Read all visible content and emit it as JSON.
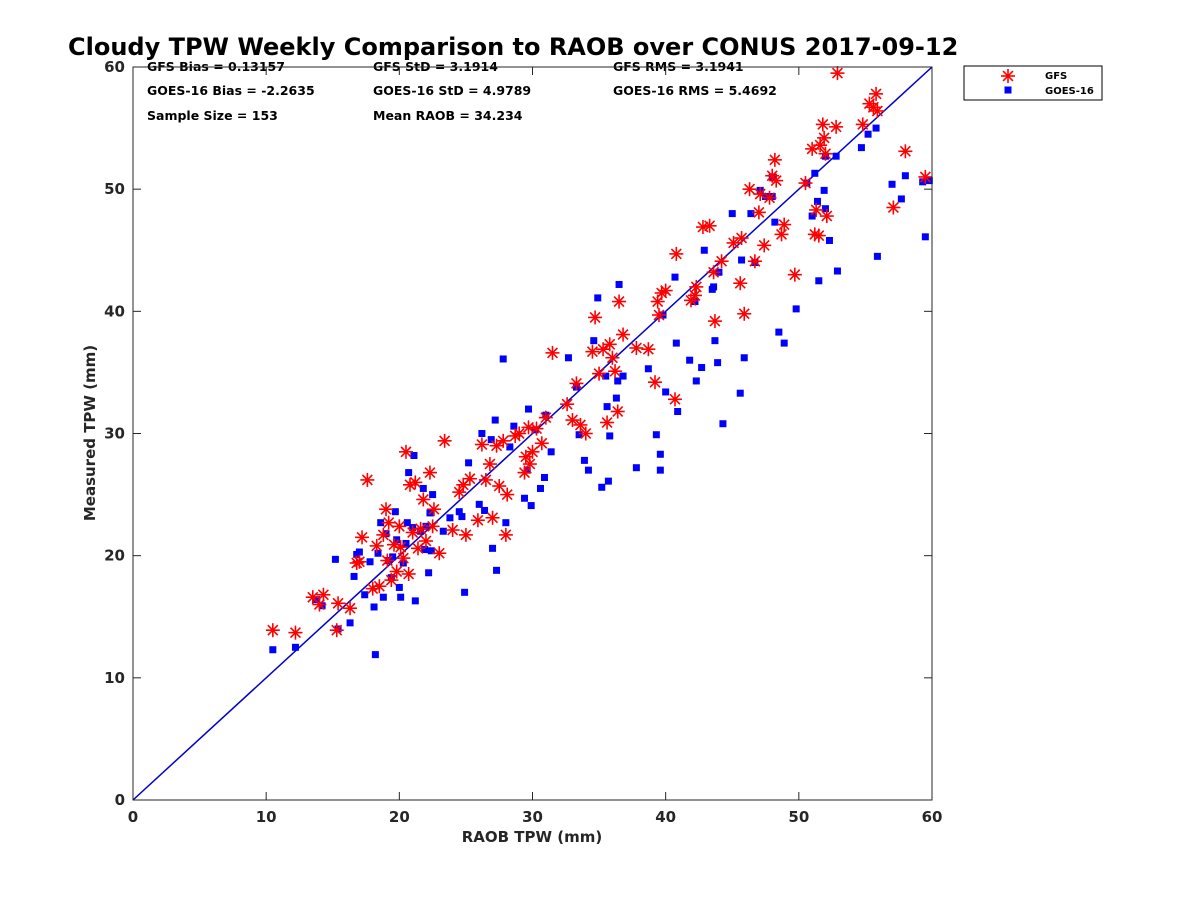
{
  "chart_data": {
    "type": "scatter",
    "title": "Cloudy TPW Weekly Comparison to RAOB over CONUS 2017-09-12",
    "xlabel": "RAOB TPW (mm)",
    "ylabel": "Measured TPW (mm)",
    "xlim": [
      0,
      60
    ],
    "ylim": [
      0,
      60
    ],
    "xticks": [
      "0",
      "10",
      "20",
      "30",
      "40",
      "50",
      "60"
    ],
    "yticks": [
      "0",
      "10",
      "20",
      "30",
      "40",
      "50",
      "60"
    ],
    "grid": false,
    "legend_position": "outside-top-right",
    "stats": [
      {
        "label": "GFS Bias = 0.13157",
        "row": 0,
        "col": 0
      },
      {
        "label": "GFS StD = 3.1914",
        "row": 0,
        "col": 1
      },
      {
        "label": "GFS RMS = 3.1941",
        "row": 0,
        "col": 2
      },
      {
        "label": "GOES-16 Bias = -2.2635",
        "row": 1,
        "col": 0
      },
      {
        "label": "GOES-16 StD = 4.9789",
        "row": 1,
        "col": 1
      },
      {
        "label": "GOES-16 RMS = 5.4692",
        "row": 1,
        "col": 2
      },
      {
        "label": "Sample Size = 153",
        "row": 2,
        "col": 0
      },
      {
        "label": "Mean RAOB = 34.234",
        "row": 2,
        "col": 1
      }
    ],
    "reference_line": {
      "x": [
        0,
        60
      ],
      "y": [
        0,
        60
      ],
      "color": "#0000cc"
    },
    "series": [
      {
        "name": "GFS",
        "marker": "asterisk",
        "color": "#ff0000",
        "points": [
          [
            10.5,
            13.9
          ],
          [
            12.2,
            13.7
          ],
          [
            13.5,
            16.6
          ],
          [
            14.0,
            16.0
          ],
          [
            14.3,
            16.8
          ],
          [
            15.3,
            13.9
          ],
          [
            15.4,
            16.1
          ],
          [
            16.3,
            15.7
          ],
          [
            16.8,
            19.4
          ],
          [
            17.0,
            19.5
          ],
          [
            17.2,
            21.5
          ],
          [
            17.6,
            26.2
          ],
          [
            18.0,
            17.3
          ],
          [
            18.3,
            20.8
          ],
          [
            18.5,
            17.5
          ],
          [
            18.8,
            21.7
          ],
          [
            19.0,
            23.8
          ],
          [
            19.1,
            19.6
          ],
          [
            19.2,
            22.7
          ],
          [
            19.4,
            18.0
          ],
          [
            19.6,
            20.9
          ],
          [
            19.8,
            18.7
          ],
          [
            20.0,
            22.4
          ],
          [
            20.1,
            20.7
          ],
          [
            20.3,
            19.8
          ],
          [
            20.5,
            28.5
          ],
          [
            20.7,
            18.5
          ],
          [
            20.8,
            25.8
          ],
          [
            21.0,
            21.9
          ],
          [
            21.2,
            26.0
          ],
          [
            21.4,
            20.6
          ],
          [
            21.6,
            22.2
          ],
          [
            21.8,
            24.6
          ],
          [
            22.0,
            21.2
          ],
          [
            22.3,
            26.8
          ],
          [
            22.5,
            22.4
          ],
          [
            22.6,
            23.8
          ],
          [
            23.0,
            20.2
          ],
          [
            23.4,
            29.4
          ],
          [
            24.0,
            22.1
          ],
          [
            24.5,
            25.2
          ],
          [
            24.8,
            25.8
          ],
          [
            25.0,
            21.7
          ],
          [
            25.3,
            26.3
          ],
          [
            25.9,
            22.9
          ],
          [
            26.2,
            29.1
          ],
          [
            26.5,
            26.2
          ],
          [
            26.8,
            27.5
          ],
          [
            27.0,
            23.1
          ],
          [
            27.3,
            29.0
          ],
          [
            27.5,
            25.7
          ],
          [
            27.8,
            29.4
          ],
          [
            28.0,
            21.7
          ],
          [
            28.1,
            25.0
          ],
          [
            28.7,
            29.8
          ],
          [
            29.0,
            30.0
          ],
          [
            29.4,
            26.8
          ],
          [
            29.5,
            28.1
          ],
          [
            29.7,
            30.5
          ],
          [
            29.8,
            27.5
          ],
          [
            30.0,
            28.5
          ],
          [
            30.3,
            30.4
          ],
          [
            30.7,
            29.2
          ],
          [
            31.0,
            31.3
          ],
          [
            31.5,
            36.6
          ],
          [
            32.6,
            32.4
          ],
          [
            33.0,
            31.1
          ],
          [
            33.3,
            34.1
          ],
          [
            33.6,
            30.7
          ],
          [
            34.0,
            30.0
          ],
          [
            34.5,
            36.7
          ],
          [
            34.7,
            39.5
          ],
          [
            35.0,
            34.9
          ],
          [
            35.3,
            36.9
          ],
          [
            35.6,
            30.9
          ],
          [
            35.8,
            37.3
          ],
          [
            36.0,
            36.2
          ],
          [
            36.2,
            35.1
          ],
          [
            36.4,
            31.8
          ],
          [
            36.5,
            40.8
          ],
          [
            36.8,
            38.1
          ],
          [
            37.8,
            37.0
          ],
          [
            38.7,
            36.9
          ],
          [
            39.2,
            34.2
          ],
          [
            39.4,
            40.8
          ],
          [
            39.5,
            39.7
          ],
          [
            39.7,
            41.5
          ],
          [
            40.0,
            41.7
          ],
          [
            40.7,
            32.8
          ],
          [
            40.8,
            44.7
          ],
          [
            41.9,
            40.9
          ],
          [
            42.2,
            41.3
          ],
          [
            42.3,
            42.0
          ],
          [
            42.8,
            46.9
          ],
          [
            43.3,
            47.0
          ],
          [
            43.6,
            43.2
          ],
          [
            43.7,
            39.2
          ],
          [
            44.2,
            44.1
          ],
          [
            45.1,
            45.6
          ],
          [
            45.6,
            42.3
          ],
          [
            45.7,
            46.0
          ],
          [
            45.9,
            39.8
          ],
          [
            46.3,
            50.0
          ],
          [
            46.7,
            44.1
          ],
          [
            47.0,
            48.1
          ],
          [
            47.1,
            49.6
          ],
          [
            47.4,
            45.4
          ],
          [
            47.8,
            49.3
          ],
          [
            48.0,
            51.1
          ],
          [
            48.2,
            52.4
          ],
          [
            48.3,
            50.7
          ],
          [
            48.7,
            46.3
          ],
          [
            48.9,
            47.1
          ],
          [
            49.7,
            43.0
          ],
          [
            50.5,
            50.5
          ],
          [
            51.0,
            53.3
          ],
          [
            51.2,
            46.3
          ],
          [
            51.3,
            48.3
          ],
          [
            51.5,
            46.2
          ],
          [
            51.6,
            53.6
          ],
          [
            51.8,
            55.3
          ],
          [
            51.9,
            54.2
          ],
          [
            52.0,
            52.9
          ],
          [
            52.1,
            47.8
          ],
          [
            52.9,
            59.5
          ],
          [
            52.8,
            55.1
          ],
          [
            54.8,
            55.3
          ],
          [
            55.3,
            57.0
          ],
          [
            55.6,
            56.7
          ],
          [
            55.8,
            57.8
          ],
          [
            55.9,
            56.4
          ],
          [
            57.1,
            48.5
          ],
          [
            58.0,
            53.1
          ],
          [
            59.5,
            51.0
          ]
        ]
      },
      {
        "name": "GOES-16",
        "marker": "square",
        "color": "#0000ff",
        "points": [
          [
            10.5,
            12.3
          ],
          [
            12.2,
            12.5
          ],
          [
            13.8,
            16.4
          ],
          [
            14.2,
            15.9
          ],
          [
            15.2,
            19.7
          ],
          [
            15.4,
            14.0
          ],
          [
            16.3,
            14.5
          ],
          [
            16.6,
            18.3
          ],
          [
            16.8,
            20.1
          ],
          [
            17.0,
            20.3
          ],
          [
            17.4,
            16.8
          ],
          [
            17.8,
            19.5
          ],
          [
            18.1,
            15.8
          ],
          [
            18.2,
            11.9
          ],
          [
            18.4,
            20.2
          ],
          [
            18.6,
            22.7
          ],
          [
            18.8,
            16.6
          ],
          [
            19.0,
            21.8
          ],
          [
            19.2,
            19.6
          ],
          [
            19.4,
            18.2
          ],
          [
            19.5,
            19.9
          ],
          [
            19.7,
            23.6
          ],
          [
            19.8,
            21.3
          ],
          [
            20.0,
            17.4
          ],
          [
            20.1,
            16.6
          ],
          [
            20.3,
            19.4
          ],
          [
            20.5,
            21.0
          ],
          [
            20.6,
            22.7
          ],
          [
            20.7,
            26.8
          ],
          [
            21.0,
            22.3
          ],
          [
            21.1,
            28.2
          ],
          [
            21.2,
            16.3
          ],
          [
            21.6,
            22.0
          ],
          [
            21.8,
            25.5
          ],
          [
            21.9,
            20.5
          ],
          [
            22.0,
            22.4
          ],
          [
            22.2,
            18.6
          ],
          [
            22.3,
            23.5
          ],
          [
            22.4,
            20.4
          ],
          [
            22.5,
            25.0
          ],
          [
            23.3,
            22.0
          ],
          [
            23.8,
            23.1
          ],
          [
            24.5,
            23.6
          ],
          [
            24.7,
            23.2
          ],
          [
            24.9,
            17.0
          ],
          [
            25.2,
            27.6
          ],
          [
            26.0,
            24.2
          ],
          [
            26.2,
            30.0
          ],
          [
            26.4,
            23.7
          ],
          [
            26.9,
            29.5
          ],
          [
            27.0,
            20.6
          ],
          [
            27.2,
            31.1
          ],
          [
            27.3,
            18.8
          ],
          [
            27.8,
            36.1
          ],
          [
            28.0,
            22.7
          ],
          [
            28.3,
            28.9
          ],
          [
            28.6,
            30.6
          ],
          [
            29.4,
            24.7
          ],
          [
            29.6,
            27.0
          ],
          [
            29.7,
            32.0
          ],
          [
            29.9,
            24.1
          ],
          [
            30.2,
            30.3
          ],
          [
            30.6,
            25.5
          ],
          [
            30.9,
            26.4
          ],
          [
            31.0,
            31.5
          ],
          [
            31.4,
            28.5
          ],
          [
            32.7,
            36.2
          ],
          [
            33.3,
            33.8
          ],
          [
            33.5,
            29.9
          ],
          [
            33.9,
            27.8
          ],
          [
            34.2,
            27.0
          ],
          [
            34.6,
            37.6
          ],
          [
            34.9,
            41.1
          ],
          [
            35.2,
            25.6
          ],
          [
            35.5,
            34.7
          ],
          [
            35.6,
            32.2
          ],
          [
            35.7,
            26.1
          ],
          [
            35.8,
            29.8
          ],
          [
            36.3,
            32.9
          ],
          [
            36.4,
            34.3
          ],
          [
            36.5,
            42.2
          ],
          [
            36.8,
            34.7
          ],
          [
            37.8,
            27.2
          ],
          [
            38.7,
            35.3
          ],
          [
            39.3,
            29.9
          ],
          [
            39.6,
            28.3
          ],
          [
            39.6,
            27.0
          ],
          [
            39.8,
            39.7
          ],
          [
            40.0,
            33.4
          ],
          [
            40.7,
            42.8
          ],
          [
            40.8,
            37.4
          ],
          [
            40.9,
            31.8
          ],
          [
            41.8,
            36.0
          ],
          [
            42.2,
            40.8
          ],
          [
            42.3,
            34.3
          ],
          [
            42.7,
            35.4
          ],
          [
            42.9,
            45.0
          ],
          [
            43.5,
            41.8
          ],
          [
            43.6,
            42.0
          ],
          [
            43.7,
            37.6
          ],
          [
            43.9,
            35.8
          ],
          [
            44.0,
            43.2
          ],
          [
            44.3,
            30.8
          ],
          [
            45.0,
            48.0
          ],
          [
            45.6,
            33.3
          ],
          [
            45.7,
            44.2
          ],
          [
            45.9,
            36.2
          ],
          [
            46.4,
            48.0
          ],
          [
            46.7,
            44.0
          ],
          [
            47.1,
            49.9
          ],
          [
            47.5,
            49.4
          ],
          [
            48.0,
            49.4
          ],
          [
            48.0,
            51.0
          ],
          [
            48.2,
            47.3
          ],
          [
            48.5,
            38.3
          ],
          [
            48.9,
            37.4
          ],
          [
            49.8,
            40.2
          ],
          [
            50.6,
            50.5
          ],
          [
            51.0,
            47.8
          ],
          [
            51.2,
            51.3
          ],
          [
            51.4,
            49.0
          ],
          [
            51.5,
            42.5
          ],
          [
            51.9,
            49.9
          ],
          [
            52.0,
            48.4
          ],
          [
            52.0,
            52.7
          ],
          [
            52.3,
            45.8
          ],
          [
            52.8,
            52.7
          ],
          [
            52.9,
            43.3
          ],
          [
            54.7,
            53.4
          ],
          [
            55.2,
            54.5
          ],
          [
            55.8,
            55.0
          ],
          [
            55.9,
            44.5
          ],
          [
            57.0,
            50.4
          ],
          [
            57.7,
            49.2
          ],
          [
            58.0,
            51.1
          ],
          [
            59.3,
            50.6
          ],
          [
            59.5,
            46.1
          ],
          [
            59.8,
            50.7
          ]
        ]
      }
    ]
  }
}
